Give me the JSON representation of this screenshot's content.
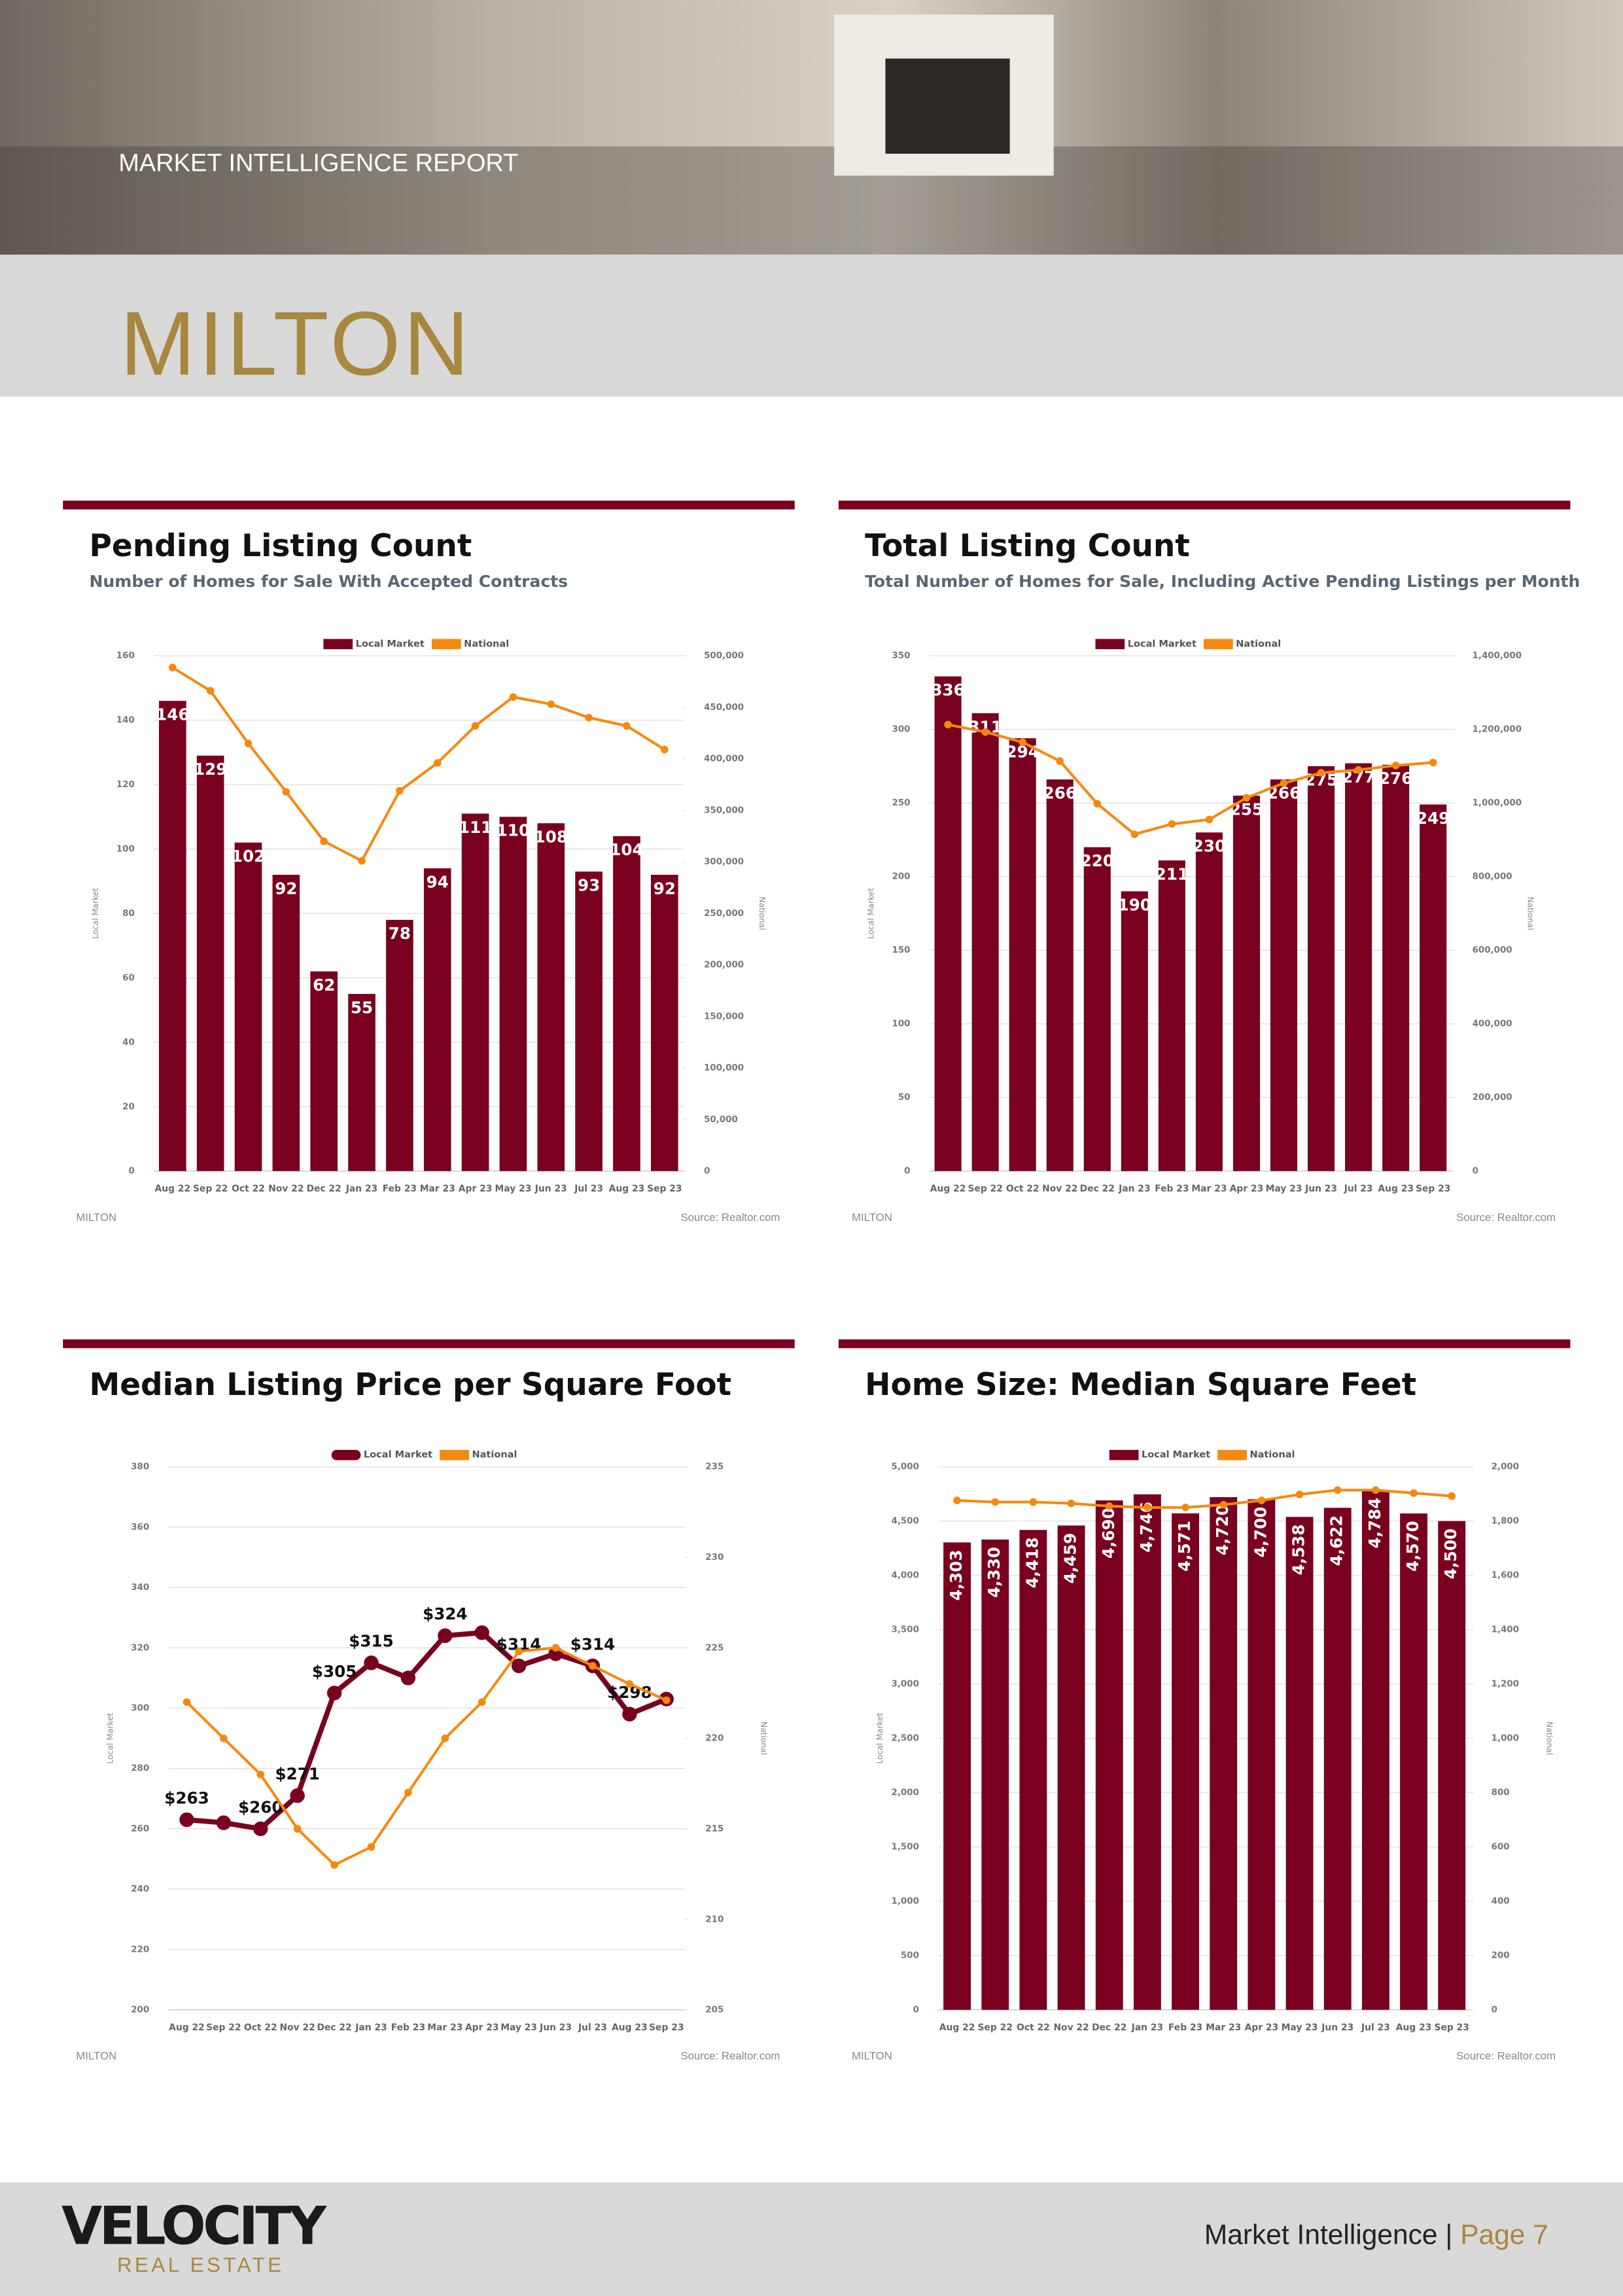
{
  "header": {
    "report": "MARKET INTELLIGENCE REPORT",
    "city": "MILTON"
  },
  "chart_data": [
    {
      "type": "combo",
      "title": "Pending Listing Count",
      "subtitle": "Number of Homes for Sale With Accepted Contracts",
      "categories": [
        "Aug 22",
        "Sep 22",
        "Oct 22",
        "Nov 22",
        "Dec 22",
        "Jan 23",
        "Feb 23",
        "Mar 23",
        "Apr 23",
        "May 23",
        "Jun 23",
        "Jul 23",
        "Aug 23",
        "Sep 23"
      ],
      "series": [
        {
          "name": "Local Market",
          "type": "bar",
          "color": "#7a0020",
          "values": [
            146,
            129,
            102,
            92,
            62,
            55,
            78,
            94,
            111,
            110,
            108,
            93,
            104,
            92
          ]
        },
        {
          "name": "National",
          "type": "line",
          "axis": "y2",
          "color": "#f5890f",
          "values": [
            488600,
            466000,
            415000,
            368000,
            320000,
            301000,
            369000,
            396000,
            432000,
            460000,
            453000,
            440000,
            432000,
            409000
          ]
        }
      ],
      "ylabel": "Local Market",
      "y2label": "National",
      "ylim": [
        0,
        160
      ],
      "yticks": [
        0,
        20,
        40,
        60,
        80,
        100,
        120,
        140,
        160
      ],
      "y2lim": [
        0,
        500000
      ],
      "y2ticks": [
        0,
        {
          "value": 50000,
          "label": "50,000"
        },
        {
          "value": 100000,
          "label": "100,000"
        },
        {
          "value": 150000,
          "label": "150,000"
        },
        {
          "value": 200000,
          "label": "200,000"
        },
        {
          "value": 250000,
          "label": "250,000"
        },
        {
          "value": 300000,
          "label": "300,000"
        },
        {
          "value": 350000,
          "label": "350,000"
        },
        {
          "value": 400000,
          "label": "400,000"
        },
        {
          "value": 450000,
          "label": "450,000"
        },
        {
          "value": 500000,
          "label": "500,000"
        }
      ],
      "grid": true,
      "footer_left": "MILTON",
      "source": "Source: Realtor.com"
    },
    {
      "type": "combo",
      "title": "Total Listing Count",
      "subtitle": "Total Number of Homes for Sale, Including Active Pending Listings per Month",
      "categories": [
        "Aug 22",
        "Sep 22",
        "Oct 22",
        "Nov 22",
        "Dec 22",
        "Jan 23",
        "Feb 23",
        "Mar 23",
        "Apr 23",
        "May 23",
        "Jun 23",
        "Jul 23",
        "Aug 23",
        "Sep 23"
      ],
      "series": [
        {
          "name": "Local Market",
          "type": "bar",
          "color": "#7a0020",
          "values": [
            336,
            311,
            294,
            266,
            220,
            190,
            211,
            230,
            255,
            266,
            275,
            277,
            276,
            249
          ]
        },
        {
          "name": "National",
          "type": "line",
          "axis": "y2",
          "color": "#f5890f",
          "values": [
            1213000,
            1193000,
            1165000,
            1114000,
            998000,
            915000,
            943000,
            955000,
            1014000,
            1054000,
            1082000,
            1090000,
            1102000,
            1110000
          ]
        }
      ],
      "ylabel": "Local Market",
      "y2label": "National",
      "ylim": [
        0,
        350
      ],
      "yticks": [
        0,
        50,
        100,
        150,
        200,
        250,
        300,
        350
      ],
      "y2lim": [
        0,
        1400000
      ],
      "y2ticks": [
        0,
        {
          "value": 200000,
          "label": "200,000"
        },
        {
          "value": 400000,
          "label": "400,000"
        },
        {
          "value": 600000,
          "label": "600,000"
        },
        {
          "value": 800000,
          "label": "800,000"
        },
        {
          "value": 1000000,
          "label": "1,000,000"
        },
        {
          "value": 1200000,
          "label": "1,200,000"
        },
        {
          "value": 1400000,
          "label": "1,400,000"
        }
      ],
      "grid": true,
      "footer_left": "MILTON",
      "source": "Source: Realtor.com"
    },
    {
      "type": "line",
      "title": "Median Listing Price per Square Foot",
      "categories": [
        "Aug 22",
        "Sep 22",
        "Oct 22",
        "Nov 22",
        "Dec 22",
        "Jan 23",
        "Feb 23",
        "Mar 23",
        "Apr 23",
        "May 23",
        "Jun 23",
        "Jul 23",
        "Aug 23",
        "Sep 23"
      ],
      "series": [
        {
          "name": "Local Market",
          "type": "line",
          "color": "#7a0020",
          "values": [
            263,
            262,
            260,
            271,
            305,
            315,
            310,
            324,
            325,
            314,
            318,
            314,
            298,
            303
          ],
          "value_labels": [
            "$263",
            null,
            "$260",
            "$271",
            "$305",
            "$315",
            null,
            "$324",
            null,
            "$314",
            null,
            "$314",
            "$298",
            null
          ]
        },
        {
          "name": "National",
          "type": "line",
          "axis": "y2",
          "color": "#f5890f",
          "values": [
            222,
            220,
            218,
            215,
            213,
            214,
            217,
            220,
            222,
            224.8,
            225,
            224,
            223,
            222.1
          ]
        }
      ],
      "ylabel": "Local Market",
      "y2label": "National",
      "ylim": [
        200,
        380
      ],
      "yticks": [
        200,
        220,
        240,
        260,
        280,
        300,
        320,
        340,
        360,
        380
      ],
      "y2lim": [
        205,
        235
      ],
      "y2ticks": [
        205,
        210,
        215,
        220,
        225,
        230,
        235
      ],
      "grid": true,
      "footer_left": "MILTON",
      "source": "Source: Realtor.com"
    },
    {
      "type": "combo",
      "title": "Home Size: Median Square Feet",
      "categories": [
        "Aug 22",
        "Sep 22",
        "Oct 22",
        "Nov 22",
        "Dec 22",
        "Jan 23",
        "Feb 23",
        "Mar 23",
        "Apr 23",
        "May 23",
        "Jun 23",
        "Jul 23",
        "Aug 23",
        "Sep 23"
      ],
      "series": [
        {
          "name": "Local Market",
          "type": "bar",
          "color": "#7a0020",
          "values": [
            4303,
            4330,
            4418,
            4459,
            4690,
            4746,
            4571,
            4720,
            4700,
            4538,
            4622,
            4784,
            4570,
            4500
          ],
          "value_labels": [
            "4,303",
            "4,330",
            "4,418",
            "4,459",
            "4,690",
            "4,746",
            "4,571",
            "4,720",
            "4,700",
            "4,538",
            "4,622",
            "4,784",
            "4,570",
            "4,500"
          ]
        },
        {
          "name": "National",
          "type": "line",
          "axis": "y2",
          "color": "#f5890f",
          "values": [
            1876,
            1870,
            1870,
            1865,
            1855,
            1850,
            1850,
            1860,
            1876,
            1898,
            1914,
            1914,
            1903,
            1892
          ]
        }
      ],
      "ylabel": "Local Market",
      "y2label": "National",
      "ylim": [
        0,
        5000
      ],
      "yticks": [
        0,
        500,
        {
          "value": 1000,
          "label": "1,000"
        },
        {
          "value": 1500,
          "label": "1,500"
        },
        {
          "value": 2000,
          "label": "2,000"
        },
        {
          "value": 2500,
          "label": "2,500"
        },
        {
          "value": 3000,
          "label": "3,000"
        },
        {
          "value": 3500,
          "label": "3,500"
        },
        {
          "value": 4000,
          "label": "4,000"
        },
        {
          "value": 4500,
          "label": "4,500"
        },
        {
          "value": 5000,
          "label": "5,000"
        }
      ],
      "y2lim": [
        0,
        2000
      ],
      "y2ticks": [
        0,
        200,
        400,
        600,
        800,
        {
          "value": 1000,
          "label": "1,000"
        },
        {
          "value": 1200,
          "label": "1,200"
        },
        {
          "value": 1400,
          "label": "1,400"
        },
        {
          "value": 1600,
          "label": "1,600"
        },
        {
          "value": 1800,
          "label": "1,800"
        },
        {
          "value": 2000,
          "label": "2,000"
        }
      ],
      "grid": true,
      "footer_left": "MILTON",
      "source": "Source: Realtor.com"
    }
  ],
  "footer": {
    "logo": "VELOCITY",
    "logo_sub": "REAL ESTATE",
    "section": "Market Intelligence |",
    "page": "Page 7"
  }
}
